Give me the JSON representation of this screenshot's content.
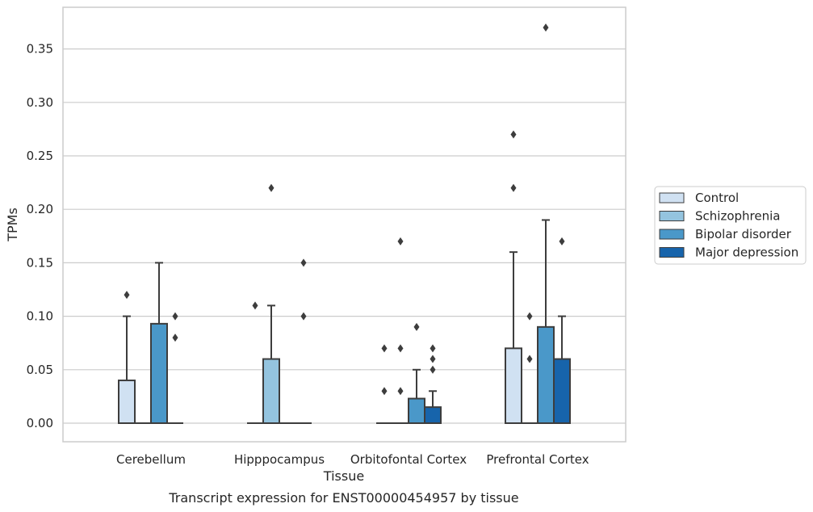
{
  "caption": "Transcript expression for ENST00000454957 by tissue",
  "chart_data": {
    "type": "box",
    "xlabel": "Tissue",
    "ylabel": "TPMs",
    "ylim": [
      -0.018,
      0.388
    ],
    "yticks": [
      0.0,
      0.05,
      0.1,
      0.15,
      0.2,
      0.25,
      0.3,
      0.35
    ],
    "ytick_labels": [
      "0.00",
      "0.05",
      "0.10",
      "0.15",
      "0.20",
      "0.25",
      "0.30",
      "0.35"
    ],
    "grid": true,
    "legend_position": "right",
    "categories": [
      "Cerebellum",
      "Hipppocampus",
      "Orbitofontal Cortex",
      "Prefrontal Cortex"
    ],
    "series": [
      {
        "name": "Control",
        "color": "#d0e1f2",
        "boxes": [
          {
            "q1": 0.0,
            "median": 0.0,
            "q3": 0.04,
            "whisker_low": 0.0,
            "whisker_high": 0.1,
            "outliers": [
              0.12
            ]
          },
          {
            "q1": 0.0,
            "median": 0.0,
            "q3": 0.0,
            "whisker_low": 0.0,
            "whisker_high": 0.0,
            "outliers": [
              0.11
            ]
          },
          {
            "q1": 0.0,
            "median": 0.0,
            "q3": 0.0,
            "whisker_low": 0.0,
            "whisker_high": 0.0,
            "outliers": [
              0.03,
              0.07
            ]
          },
          {
            "q1": 0.0,
            "median": 0.0,
            "q3": 0.07,
            "whisker_low": 0.0,
            "whisker_high": 0.16,
            "outliers": [
              0.22,
              0.27
            ]
          }
        ]
      },
      {
        "name": "Schizophrenia",
        "color": "#94c4df",
        "boxes": [
          {
            "q1": 0.0,
            "median": 0.0,
            "q3": 0.0,
            "whisker_low": 0.0,
            "whisker_high": 0.0,
            "outliers": []
          },
          {
            "q1": 0.0,
            "median": 0.0,
            "q3": 0.06,
            "whisker_low": 0.0,
            "whisker_high": 0.11,
            "outliers": [
              0.22
            ]
          },
          {
            "q1": 0.0,
            "median": 0.0,
            "q3": 0.0,
            "whisker_low": 0.0,
            "whisker_high": 0.0,
            "outliers": [
              0.03,
              0.07,
              0.17
            ]
          },
          {
            "q1": 0.0,
            "median": 0.0,
            "q3": 0.0,
            "whisker_low": 0.0,
            "whisker_high": 0.0,
            "outliers": [
              0.06,
              0.1
            ]
          }
        ]
      },
      {
        "name": "Bipolar disorder",
        "color": "#4a98c9",
        "boxes": [
          {
            "q1": 0.0,
            "median": 0.0,
            "q3": 0.093,
            "whisker_low": 0.0,
            "whisker_high": 0.15,
            "outliers": []
          },
          {
            "q1": 0.0,
            "median": 0.0,
            "q3": 0.0,
            "whisker_low": 0.0,
            "whisker_high": 0.0,
            "outliers": []
          },
          {
            "q1": 0.0,
            "median": 0.0,
            "q3": 0.023,
            "whisker_low": 0.0,
            "whisker_high": 0.05,
            "outliers": [
              0.09
            ]
          },
          {
            "q1": 0.0,
            "median": 0.0,
            "q3": 0.09,
            "whisker_low": 0.0,
            "whisker_high": 0.19,
            "outliers": [
              0.37
            ]
          }
        ]
      },
      {
        "name": "Major depression",
        "color": "#1764ab",
        "boxes": [
          {
            "q1": 0.0,
            "median": 0.0,
            "q3": 0.0,
            "whisker_low": 0.0,
            "whisker_high": 0.0,
            "outliers": [
              0.08,
              0.1
            ]
          },
          {
            "q1": 0.0,
            "median": 0.0,
            "q3": 0.0,
            "whisker_low": 0.0,
            "whisker_high": 0.0,
            "outliers": [
              0.1,
              0.15
            ]
          },
          {
            "q1": 0.0,
            "median": 0.0,
            "q3": 0.015,
            "whisker_low": 0.0,
            "whisker_high": 0.03,
            "outliers": [
              0.05,
              0.06,
              0.07
            ]
          },
          {
            "q1": 0.0,
            "median": 0.0,
            "q3": 0.06,
            "whisker_low": 0.0,
            "whisker_high": 0.1,
            "outliers": [
              0.17
            ]
          }
        ]
      }
    ]
  }
}
